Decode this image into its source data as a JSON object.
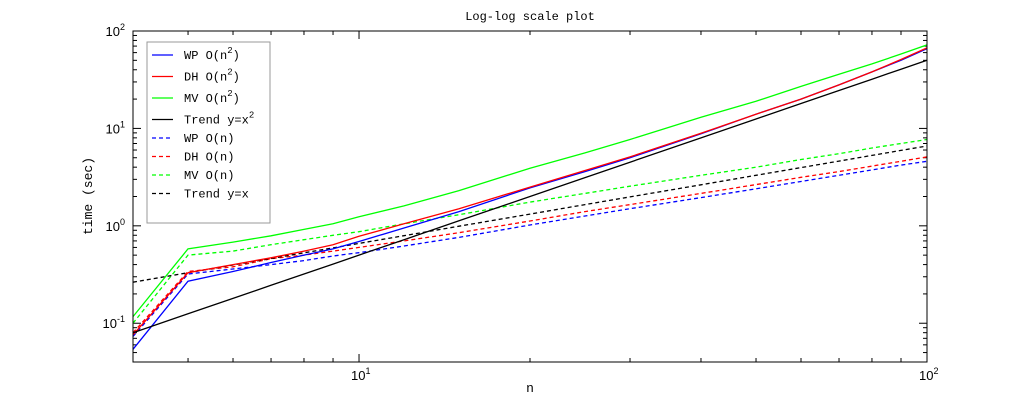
{
  "chart_data": {
    "type": "line",
    "title": "Log-log scale plot",
    "xlabel": "n",
    "ylabel": "time (sec)",
    "xscale": "log",
    "yscale": "log",
    "xlim": [
      4,
      100
    ],
    "ylim": [
      0.04,
      100
    ],
    "grid": false,
    "legend_position": "top-left",
    "x_ticks": [
      {
        "base": "10",
        "exp": "1",
        "value": 10
      },
      {
        "base": "10",
        "exp": "2",
        "value": 100
      }
    ],
    "y_ticks": [
      {
        "base": "10",
        "exp": "-1",
        "value": 0.1
      },
      {
        "base": "10",
        "exp": "0",
        "value": 1
      },
      {
        "base": "10",
        "exp": "1",
        "value": 10
      },
      {
        "base": "10",
        "exp": "2",
        "value": 100
      }
    ],
    "x": [
      4,
      5,
      6,
      7,
      8,
      9,
      10,
      12,
      15,
      20,
      25,
      30,
      40,
      50,
      60,
      70,
      80,
      90,
      100
    ],
    "series": [
      {
        "name": "WP O(n2)",
        "label": "WP O(n",
        "sup": "2",
        "suffix": ")",
        "color": "#0000ff",
        "dash": false,
        "values": [
          0.054,
          0.27,
          0.34,
          0.42,
          0.5,
          0.58,
          0.69,
          0.95,
          1.4,
          2.45,
          3.6,
          5.0,
          8.8,
          14,
          20,
          28,
          38,
          50,
          66
        ]
      },
      {
        "name": "DH O(n2)",
        "label": "DH O(n",
        "sup": "2",
        "suffix": ")",
        "color": "#ff0000",
        "dash": false,
        "values": [
          0.076,
          0.33,
          0.4,
          0.47,
          0.55,
          0.64,
          0.78,
          1.05,
          1.5,
          2.5,
          3.7,
          5.1,
          8.9,
          14,
          20,
          28,
          38,
          51,
          67
        ]
      },
      {
        "name": "MV O(n2)",
        "label": "MV O(n",
        "sup": "2",
        "suffix": ")",
        "color": "#00ff00",
        "dash": false,
        "values": [
          0.117,
          0.58,
          0.68,
          0.79,
          0.92,
          1.05,
          1.24,
          1.6,
          2.3,
          3.9,
          5.6,
          7.7,
          13,
          19,
          27,
          36,
          46,
          58,
          72
        ]
      },
      {
        "name": "Trend y=x2",
        "label": "Trend y=x",
        "sup": "2",
        "suffix": "",
        "color": "#000000",
        "dash": false,
        "values": [
          0.08,
          0.125,
          0.18,
          0.245,
          0.32,
          0.405,
          0.5,
          0.72,
          1.125,
          2.0,
          3.125,
          4.5,
          8.0,
          12.5,
          18,
          24.5,
          32,
          40.5,
          50
        ]
      },
      {
        "name": "WP O(n)",
        "label": "WP O(n)",
        "sup": "",
        "suffix": "",
        "color": "#0000ff",
        "dash": true,
        "values": [
          0.073,
          0.32,
          0.36,
          0.4,
          0.44,
          0.49,
          0.53,
          0.62,
          0.76,
          1.02,
          1.26,
          1.5,
          1.95,
          2.4,
          2.85,
          3.3,
          3.75,
          4.2,
          4.6
        ]
      },
      {
        "name": "DH O(n)",
        "label": "DH O(n)",
        "sup": "",
        "suffix": "",
        "color": "#ff0000",
        "dash": true,
        "values": [
          0.08,
          0.34,
          0.38,
          0.46,
          0.5,
          0.55,
          0.6,
          0.7,
          0.85,
          1.12,
          1.4,
          1.65,
          2.15,
          2.65,
          3.15,
          3.6,
          4.1,
          4.6,
          5.1
        ]
      },
      {
        "name": "MV O(n)",
        "label": "MV O(n)",
        "sup": "",
        "suffix": "",
        "color": "#00ff00",
        "dash": true,
        "values": [
          0.1,
          0.5,
          0.55,
          0.64,
          0.72,
          0.8,
          0.87,
          1.05,
          1.3,
          1.75,
          2.15,
          2.55,
          3.3,
          4.0,
          4.8,
          5.5,
          6.3,
          7.0,
          7.7
        ]
      },
      {
        "name": "Trend y=x",
        "label": "Trend y=x",
        "sup": "",
        "suffix": "",
        "color": "#000000",
        "dash": true,
        "values": [
          0.264,
          0.33,
          0.396,
          0.462,
          0.528,
          0.594,
          0.66,
          0.792,
          0.99,
          1.32,
          1.65,
          1.98,
          2.64,
          3.3,
          3.96,
          4.62,
          5.28,
          5.94,
          6.6
        ]
      }
    ]
  }
}
